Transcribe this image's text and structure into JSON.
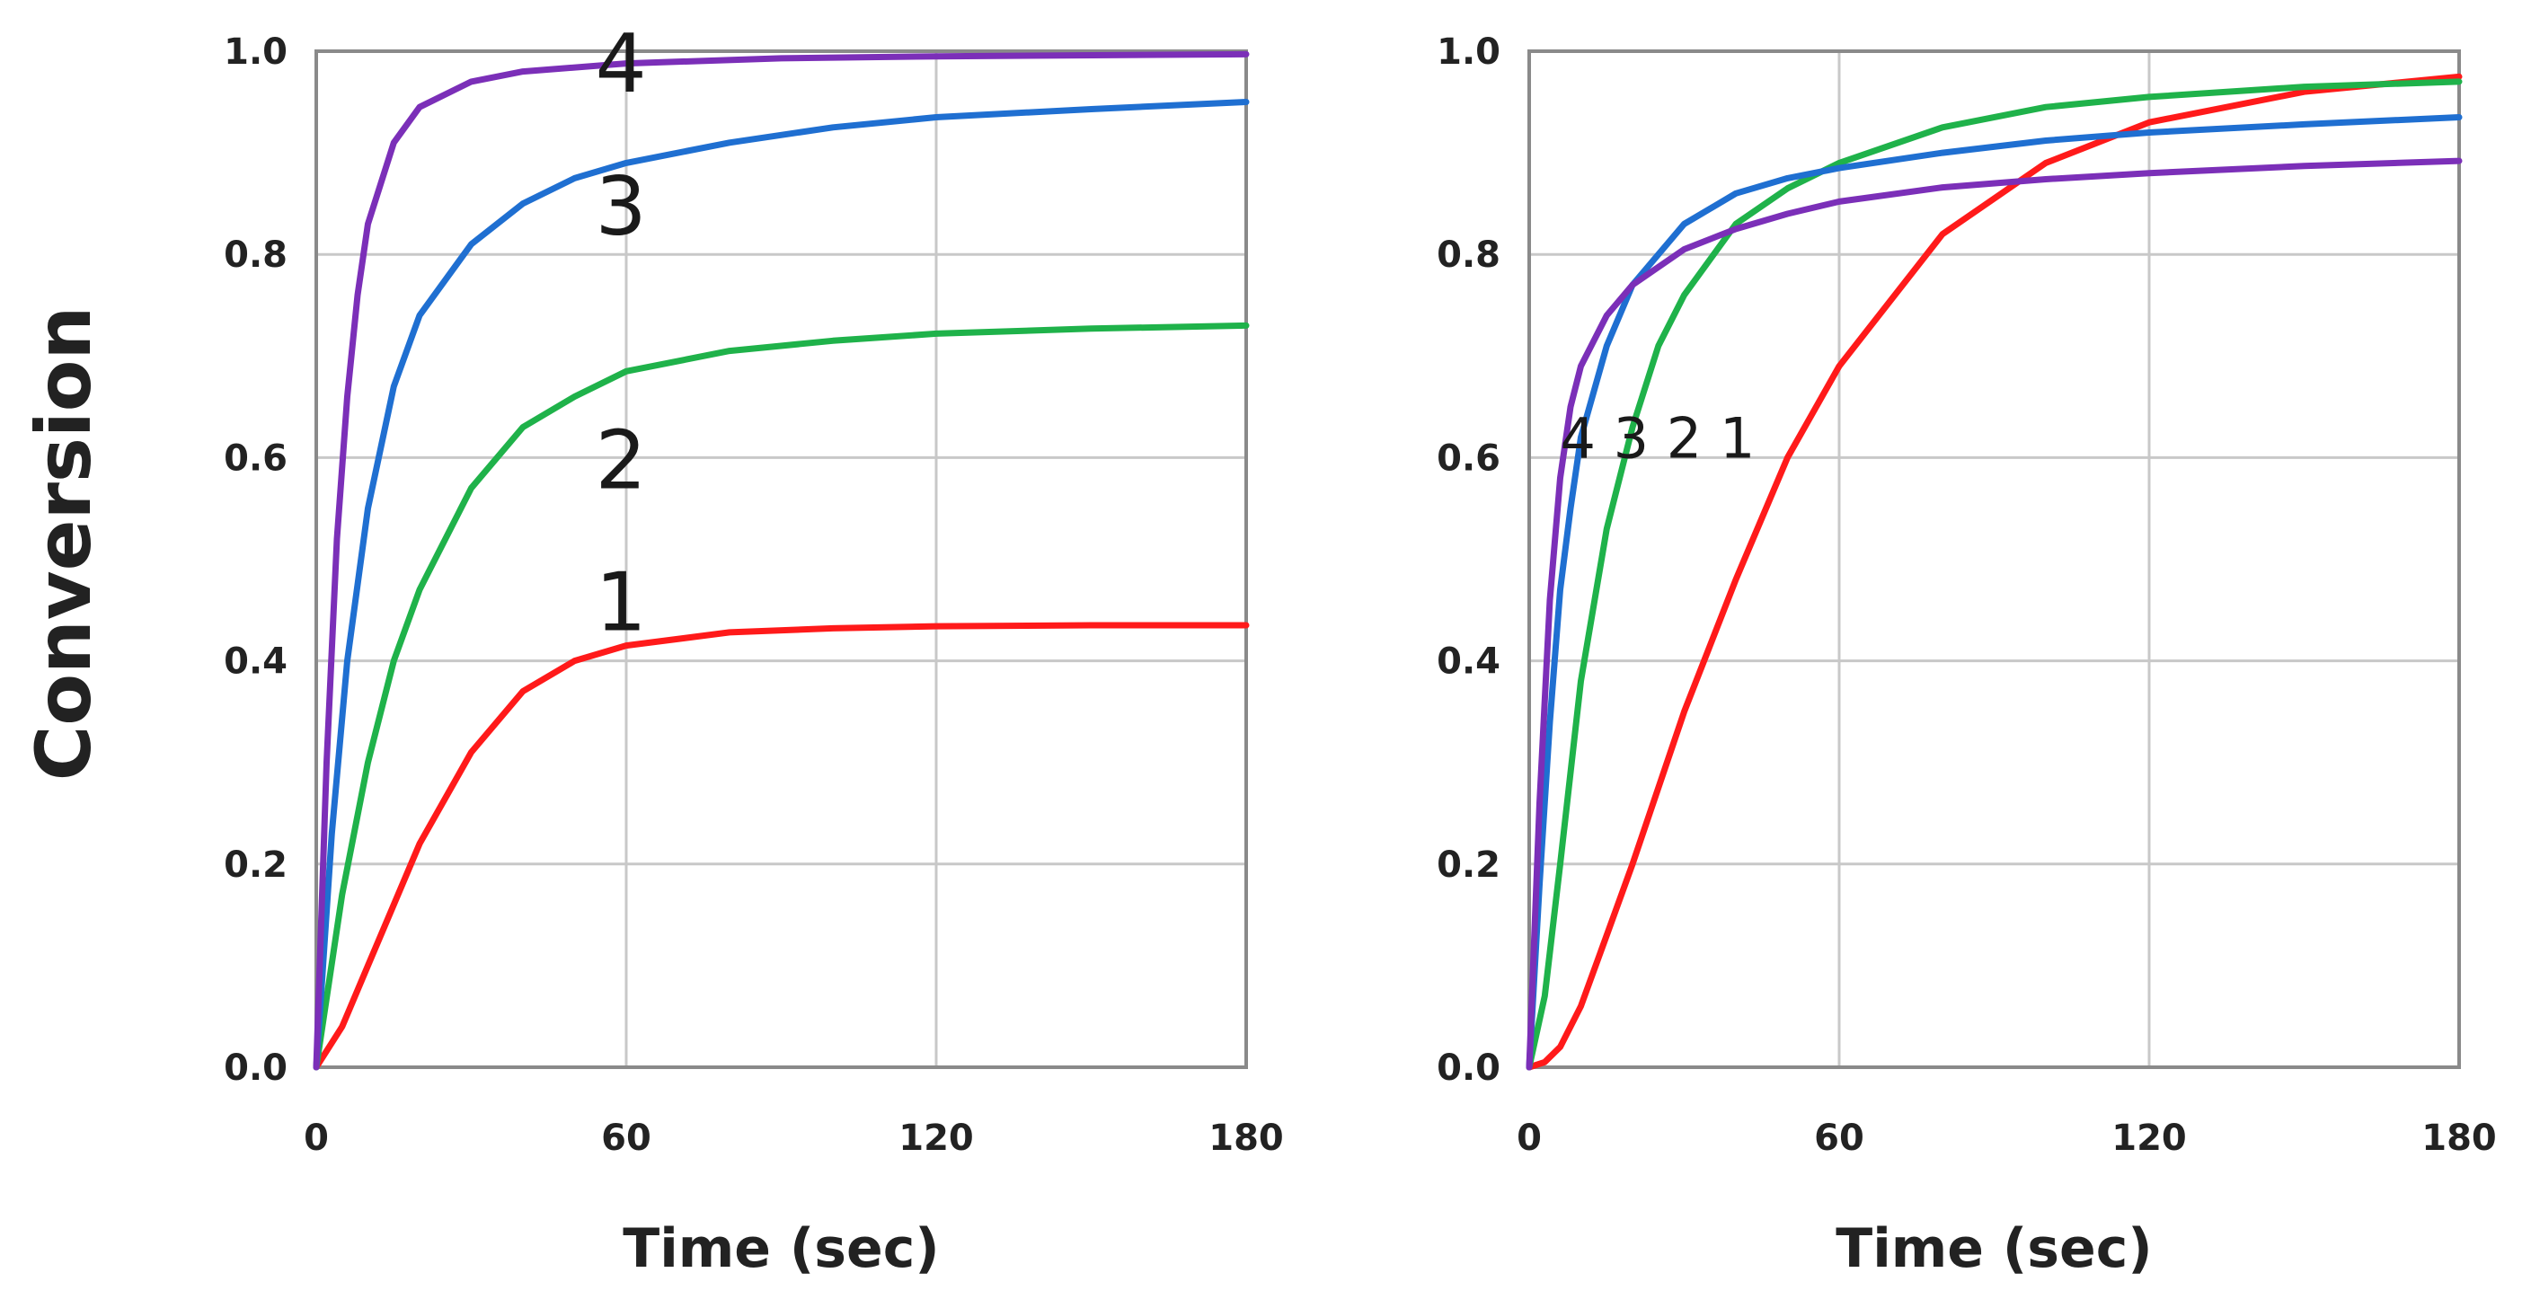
{
  "figure": {
    "ylabel": "Conversion",
    "colors": {
      "1": "#ff1a1a",
      "2": "#1fb24a",
      "3": "#1f6fd1",
      "4": "#7b2fb8"
    }
  },
  "chart_data": [
    {
      "type": "line",
      "title": "",
      "xlabel": "Time (sec)",
      "ylabel": "Conversion",
      "xlim": [
        0,
        180
      ],
      "ylim": [
        0,
        1.0
      ],
      "xticks": [
        0,
        60,
        120,
        180
      ],
      "xtick_labels": [
        "0",
        "60",
        "120",
        "180"
      ],
      "yticks": [
        0,
        0.2,
        0.4,
        0.6,
        0.8,
        1.0
      ],
      "ytick_labels": [
        "0.0",
        "0.2",
        "0.4",
        "0.6",
        "0.8",
        "1.0"
      ],
      "grid": true,
      "series": [
        {
          "name": "1",
          "color": "#ff1a1a",
          "x": [
            0,
            5,
            10,
            15,
            20,
            30,
            40,
            50,
            60,
            80,
            100,
            120,
            150,
            180
          ],
          "y": [
            0,
            0.04,
            0.1,
            0.16,
            0.22,
            0.31,
            0.37,
            0.4,
            0.415,
            0.428,
            0.432,
            0.434,
            0.435,
            0.435
          ]
        },
        {
          "name": "2",
          "color": "#1fb24a",
          "x": [
            0,
            5,
            10,
            15,
            20,
            30,
            40,
            50,
            60,
            80,
            100,
            120,
            150,
            180
          ],
          "y": [
            0,
            0.17,
            0.3,
            0.4,
            0.47,
            0.57,
            0.63,
            0.66,
            0.685,
            0.705,
            0.715,
            0.722,
            0.727,
            0.73
          ]
        },
        {
          "name": "3",
          "color": "#1f6fd1",
          "x": [
            0,
            3,
            6,
            10,
            15,
            20,
            30,
            40,
            50,
            60,
            80,
            100,
            120,
            150,
            180
          ],
          "y": [
            0,
            0.23,
            0.4,
            0.55,
            0.67,
            0.74,
            0.81,
            0.85,
            0.875,
            0.89,
            0.91,
            0.925,
            0.935,
            0.943,
            0.95
          ]
        },
        {
          "name": "4",
          "color": "#7b2fb8",
          "x": [
            0,
            2,
            4,
            6,
            8,
            10,
            15,
            20,
            30,
            40,
            60,
            90,
            120,
            180
          ],
          "y": [
            0,
            0.3,
            0.52,
            0.66,
            0.76,
            0.83,
            0.91,
            0.945,
            0.97,
            0.98,
            0.988,
            0.993,
            0.995,
            0.997
          ]
        }
      ],
      "annotations": [
        {
          "text": "4",
          "x": 54,
          "y": 0.96
        },
        {
          "text": "3",
          "x": 54,
          "y": 0.82
        },
        {
          "text": "2",
          "x": 54,
          "y": 0.57
        },
        {
          "text": "1",
          "x": 54,
          "y": 0.43
        }
      ]
    },
    {
      "type": "line",
      "title": "",
      "xlabel": "Time (sec)",
      "ylabel": "",
      "xlim": [
        0,
        180
      ],
      "ylim": [
        0,
        1.0
      ],
      "xticks": [
        0,
        60,
        120,
        180
      ],
      "xtick_labels": [
        "0",
        "60",
        "120",
        "180"
      ],
      "yticks": [
        0,
        0.2,
        0.4,
        0.6,
        0.8,
        1.0
      ],
      "ytick_labels": [
        "0.0",
        "0.2",
        "0.4",
        "0.6",
        "0.8",
        "1.0"
      ],
      "grid": true,
      "series": [
        {
          "name": "1",
          "color": "#ff1a1a",
          "x": [
            0,
            3,
            6,
            10,
            15,
            20,
            30,
            40,
            50,
            60,
            80,
            100,
            120,
            150,
            180
          ],
          "y": [
            0,
            0.005,
            0.02,
            0.06,
            0.13,
            0.2,
            0.35,
            0.48,
            0.6,
            0.69,
            0.82,
            0.89,
            0.93,
            0.96,
            0.975
          ]
        },
        {
          "name": "2",
          "color": "#1fb24a",
          "x": [
            0,
            3,
            6,
            10,
            15,
            20,
            25,
            30,
            40,
            50,
            60,
            80,
            100,
            120,
            150,
            180
          ],
          "y": [
            0,
            0.07,
            0.2,
            0.38,
            0.53,
            0.63,
            0.71,
            0.76,
            0.83,
            0.865,
            0.89,
            0.925,
            0.945,
            0.955,
            0.965,
            0.97
          ]
        },
        {
          "name": "3",
          "color": "#1f6fd1",
          "x": [
            0,
            2,
            4,
            6,
            8,
            10,
            15,
            20,
            30,
            40,
            50,
            60,
            80,
            100,
            120,
            150,
            180
          ],
          "y": [
            0,
            0.18,
            0.34,
            0.47,
            0.55,
            0.62,
            0.71,
            0.77,
            0.83,
            0.86,
            0.875,
            0.885,
            0.9,
            0.912,
            0.92,
            0.928,
            0.935
          ]
        },
        {
          "name": "4",
          "color": "#7b2fb8",
          "x": [
            0,
            2,
            4,
            6,
            8,
            10,
            15,
            20,
            30,
            40,
            50,
            60,
            80,
            100,
            120,
            150,
            180
          ],
          "y": [
            0,
            0.26,
            0.46,
            0.58,
            0.65,
            0.69,
            0.74,
            0.77,
            0.805,
            0.825,
            0.84,
            0.852,
            0.866,
            0.874,
            0.88,
            0.887,
            0.892
          ]
        }
      ],
      "annotations": [
        {
          "text": "4 3 2 1",
          "x": 6,
          "y": 0.6
        }
      ]
    }
  ]
}
